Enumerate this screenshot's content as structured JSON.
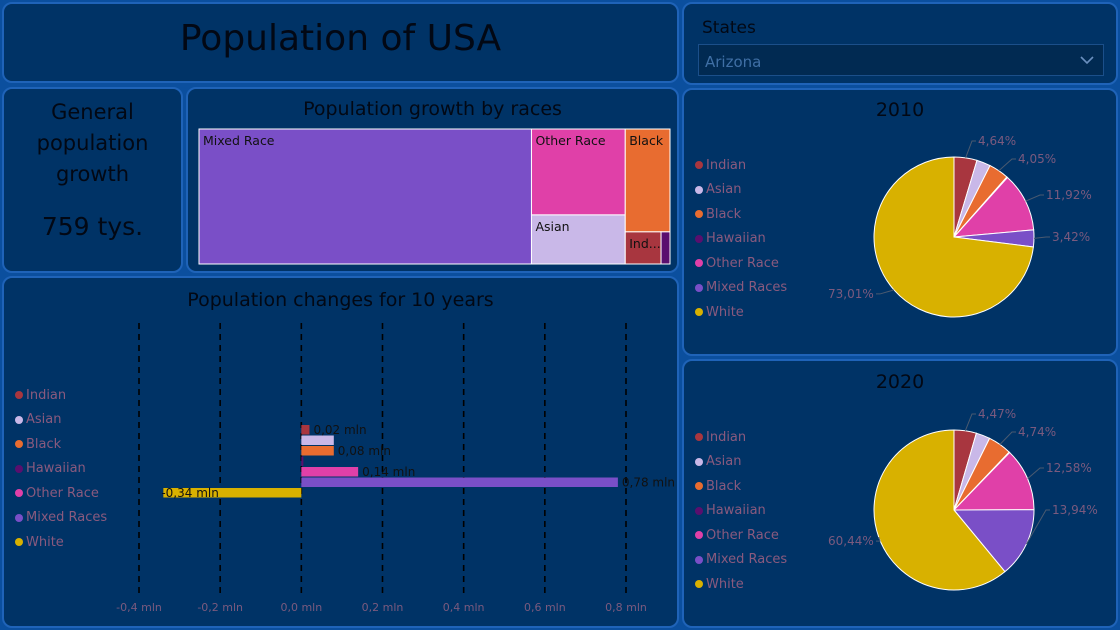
{
  "header": {
    "title": "Population of USA"
  },
  "general": {
    "title": "General population growth",
    "value": "759 tys."
  },
  "states": {
    "label": "States",
    "selected": "Arizona"
  },
  "colors": {
    "Indian": "#a8363f",
    "Asian": "#c9b8e8",
    "Black": "#e86c30",
    "Hawaiian": "#5a0f6e",
    "Other Race": "#e040a8",
    "Mixed Races": "#7a4fc7",
    "White": "#d8b100"
  },
  "legend": [
    "Indian",
    "Asian",
    "Black",
    "Hawaiian",
    "Other Race",
    "Mixed Races",
    "White"
  ],
  "chart_data": [
    {
      "id": "treemap",
      "type": "treemap",
      "title": "Population growth by races",
      "items": [
        {
          "label": "Mixed Race",
          "value": 0.78
        },
        {
          "label": "Other Race",
          "value": 0.14
        },
        {
          "label": "Asian",
          "value": 0.08
        },
        {
          "label": "Black",
          "value": 0.08
        },
        {
          "label": "Ind...",
          "value": 0.02
        },
        {
          "label": "",
          "value": 0.005
        }
      ]
    },
    {
      "id": "changes",
      "type": "bar",
      "title": "Population changes for 10 years",
      "categories": [
        "Indian",
        "Asian",
        "Black",
        "Hawaiian",
        "Other Race",
        "Mixed Races",
        "White"
      ],
      "values": [
        0.02,
        0.08,
        0.08,
        0.005,
        0.14,
        0.78,
        -0.34
      ],
      "data_labels": [
        "0,02 mln",
        "",
        "0,08 mln",
        "",
        "0,14 mln",
        "0,78 mln",
        "-0,34 mln"
      ],
      "xlim": [
        -0.4,
        0.8
      ],
      "x_ticks": [
        "-0,4 mln",
        "-0,2 mln",
        "0,0 mln",
        "0,2 mln",
        "0,4 mln",
        "0,6 mln",
        "0,8 mln"
      ]
    },
    {
      "id": "pie2010",
      "type": "pie",
      "title": "2010",
      "labels": [
        "Indian",
        "Asian",
        "Black",
        "Hawaiian",
        "Other Race",
        "Mixed Races",
        "White"
      ],
      "values": [
        4.64,
        2.8,
        4.05,
        0.16,
        11.92,
        3.42,
        73.01
      ],
      "data_labels": [
        "4,64%",
        "",
        "4,05%",
        "",
        "11,92%",
        "3,42%",
        "73,01%"
      ]
    },
    {
      "id": "pie2020",
      "type": "pie",
      "title": "2020",
      "labels": [
        "Indian",
        "Asian",
        "Black",
        "Hawaiian",
        "Other Race",
        "Mixed Races",
        "White"
      ],
      "values": [
        4.47,
        2.8,
        4.74,
        0.13,
        12.58,
        13.94,
        60.44
      ],
      "data_labels": [
        "4,47%",
        "",
        "4,74%",
        "",
        "12,58%",
        "13,94%",
        "60,44%"
      ]
    }
  ]
}
